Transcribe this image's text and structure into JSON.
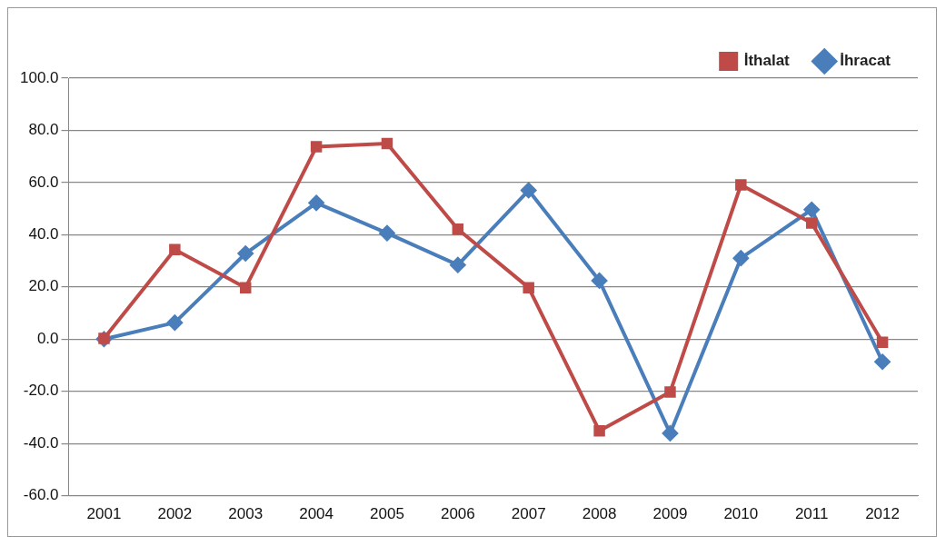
{
  "chart_data": {
    "type": "line",
    "categories": [
      "2001",
      "2002",
      "2003",
      "2004",
      "2005",
      "2006",
      "2007",
      "2008",
      "2009",
      "2010",
      "2011",
      "2012"
    ],
    "series": [
      {
        "name": "İhracat",
        "color": "#4a7ebb",
        "marker": "diamond",
        "values": [
          0,
          6.3,
          32.8,
          52.2,
          40.6,
          28.4,
          57,
          22.4,
          -36.1,
          31,
          49.6,
          -8.7
        ]
      },
      {
        "name": "İthalat",
        "color": "#be4b48",
        "marker": "square",
        "values": [
          0.3,
          34.3,
          19.7,
          73.7,
          74.9,
          42.1,
          19.7,
          -35.2,
          -20.3,
          59.1,
          44.5,
          -1.2
        ]
      }
    ],
    "ylim": [
      -60,
      100
    ],
    "yticks": [
      {
        "value": -60,
        "label": "-60.0"
      },
      {
        "value": -40,
        "label": "-40.0"
      },
      {
        "value": -20,
        "label": "-20.0"
      },
      {
        "value": 0,
        "label": "0.0"
      },
      {
        "value": 20,
        "label": "20.0"
      },
      {
        "value": 40,
        "label": "40.0"
      },
      {
        "value": 60,
        "label": "60.0"
      },
      {
        "value": 80,
        "label": "80.0"
      },
      {
        "value": 100,
        "label": "100.0"
      }
    ],
    "grid": "y",
    "legend": "top right",
    "line_style": "solid"
  }
}
